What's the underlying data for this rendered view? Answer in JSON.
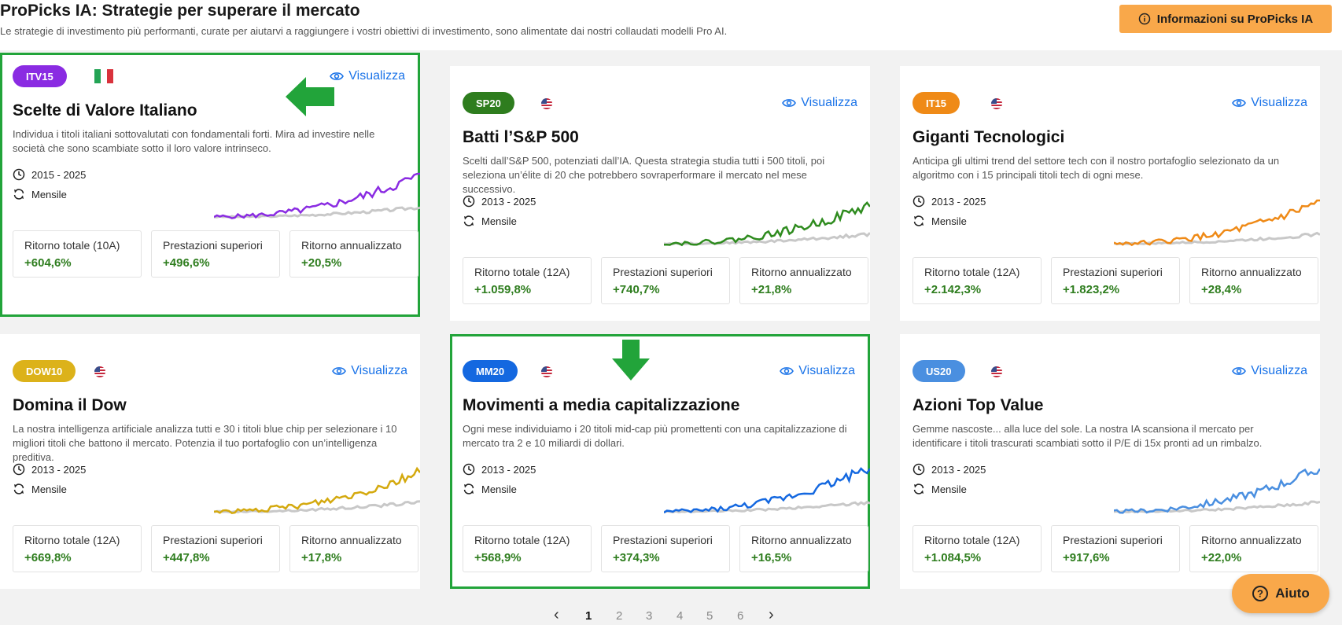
{
  "header": {
    "title": "ProPicks IA: Strategie per superare il mercato",
    "subtitle": "Le strategie di investimento più performanti, curate per aiutarvi a raggiungere i vostri obiettivi di investimento, sono alimentate dai nostri collaudati modelli Pro AI.",
    "info_button": "Informazioni su ProPicks IA"
  },
  "view_label": "Visualizza",
  "cards": [
    {
      "badge": "ITV15",
      "badge_color": "#8a2be2",
      "flag": "it-flag-icon",
      "title": "Scelte di Valore Italiano",
      "description": "Individua i titoli italiani sottovalutati con fondamentali forti. Mira ad investire nelle società che sono scambiate sotto il loro valore intrinseco.",
      "period": "2015 - 2025",
      "frequency": "Mensile",
      "line_color": "#8a2be2",
      "highlighted": true,
      "stats": [
        {
          "label": "Ritorno totale (10A)",
          "value": "+604,6%"
        },
        {
          "label": "Prestazioni superiori",
          "value": "+496,6%"
        },
        {
          "label": "Ritorno annualizzato",
          "value": "+20,5%"
        }
      ]
    },
    {
      "badge": "SP20",
      "badge_color": "#2e7d1e",
      "flag": "us-flag-icon",
      "title": "Batti l’S&P 500",
      "description": "Scelti dall’S&P 500, potenziati dall’IA. Questa strategia studia tutti i 500 titoli, poi seleziona un’élite di 20 che potrebbero sovraperformare il mercato nel mese successivo.",
      "period": "2013 - 2025",
      "frequency": "Mensile",
      "line_color": "#2e8b1e",
      "highlighted": false,
      "stats": [
        {
          "label": "Ritorno totale (12A)",
          "value": "+1.059,8%"
        },
        {
          "label": "Prestazioni superiori",
          "value": "+740,7%"
        },
        {
          "label": "Ritorno annualizzato",
          "value": "+21,8%"
        }
      ]
    },
    {
      "badge": "IT15",
      "badge_color": "#ef8a17",
      "flag": "us-flag-icon",
      "title": "Giganti Tecnologici",
      "description": "Anticipa gli ultimi trend del settore tech con il nostro portafoglio selezionato da un algoritmo con i 15 principali titoli tech di ogni mese.",
      "period": "2013 - 2025",
      "frequency": "Mensile",
      "line_color": "#ef8a17",
      "highlighted": false,
      "stats": [
        {
          "label": "Ritorno totale (12A)",
          "value": "+2.142,3%"
        },
        {
          "label": "Prestazioni superiori",
          "value": "+1.823,2%"
        },
        {
          "label": "Ritorno annualizzato",
          "value": "+28,4%"
        }
      ]
    },
    {
      "badge": "DOW10",
      "badge_color": "#dcb21a",
      "flag": "us-flag-icon",
      "title": "Domina il Dow",
      "description": "La nostra intelligenza artificiale analizza tutti e 30 i titoli blue chip per selezionare i 10 migliori titoli che battono il mercato. Potenzia il tuo portafoglio con un’intelligenza preditiva.",
      "period": "2013 - 2025",
      "frequency": "Mensile",
      "line_color": "#d4a90e",
      "highlighted": false,
      "stats": [
        {
          "label": "Ritorno totale (12A)",
          "value": "+669,8%"
        },
        {
          "label": "Prestazioni superiori",
          "value": "+447,8%"
        },
        {
          "label": "Ritorno annualizzato",
          "value": "+17,8%"
        }
      ]
    },
    {
      "badge": "MM20",
      "badge_color": "#1468e0",
      "flag": "us-flag-icon",
      "title": "Movimenti a media capitalizzazione",
      "description": "Ogni mese individuiamo i 20 titoli mid-cap più promettenti con una capitalizzazione di mercato tra 2 e 10 miliardi di dollari.",
      "period": "2013 - 2025",
      "frequency": "Mensile",
      "line_color": "#1468e0",
      "highlighted": true,
      "stats": [
        {
          "label": "Ritorno totale (12A)",
          "value": "+568,9%"
        },
        {
          "label": "Prestazioni superiori",
          "value": "+374,3%"
        },
        {
          "label": "Ritorno annualizzato",
          "value": "+16,5%"
        }
      ]
    },
    {
      "badge": "US20",
      "badge_color": "#4a8fe0",
      "flag": "us-flag-icon",
      "title": "Azioni Top Value",
      "description": "Gemme nascoste... alla luce del sole. La nostra IA scansiona il mercato per identificare i titoli trascurati scambiati sotto il P/E di 15x pronti ad un rimbalzo.",
      "period": "2013 - 2025",
      "frequency": "Mensile",
      "line_color": "#4a8fe0",
      "highlighted": false,
      "stats": [
        {
          "label": "Ritorno totale (12A)",
          "value": "+1.084,5%"
        },
        {
          "label": "Prestazioni superiori",
          "value": "+917,6%"
        },
        {
          "label": "Ritorno annualizzato",
          "value": "+22,0%"
        }
      ]
    }
  ],
  "pagination": {
    "pages": [
      "1",
      "2",
      "3",
      "4",
      "5",
      "6"
    ],
    "current": "1",
    "prev": "‹",
    "next": "›"
  },
  "help_button": "Aiuto"
}
